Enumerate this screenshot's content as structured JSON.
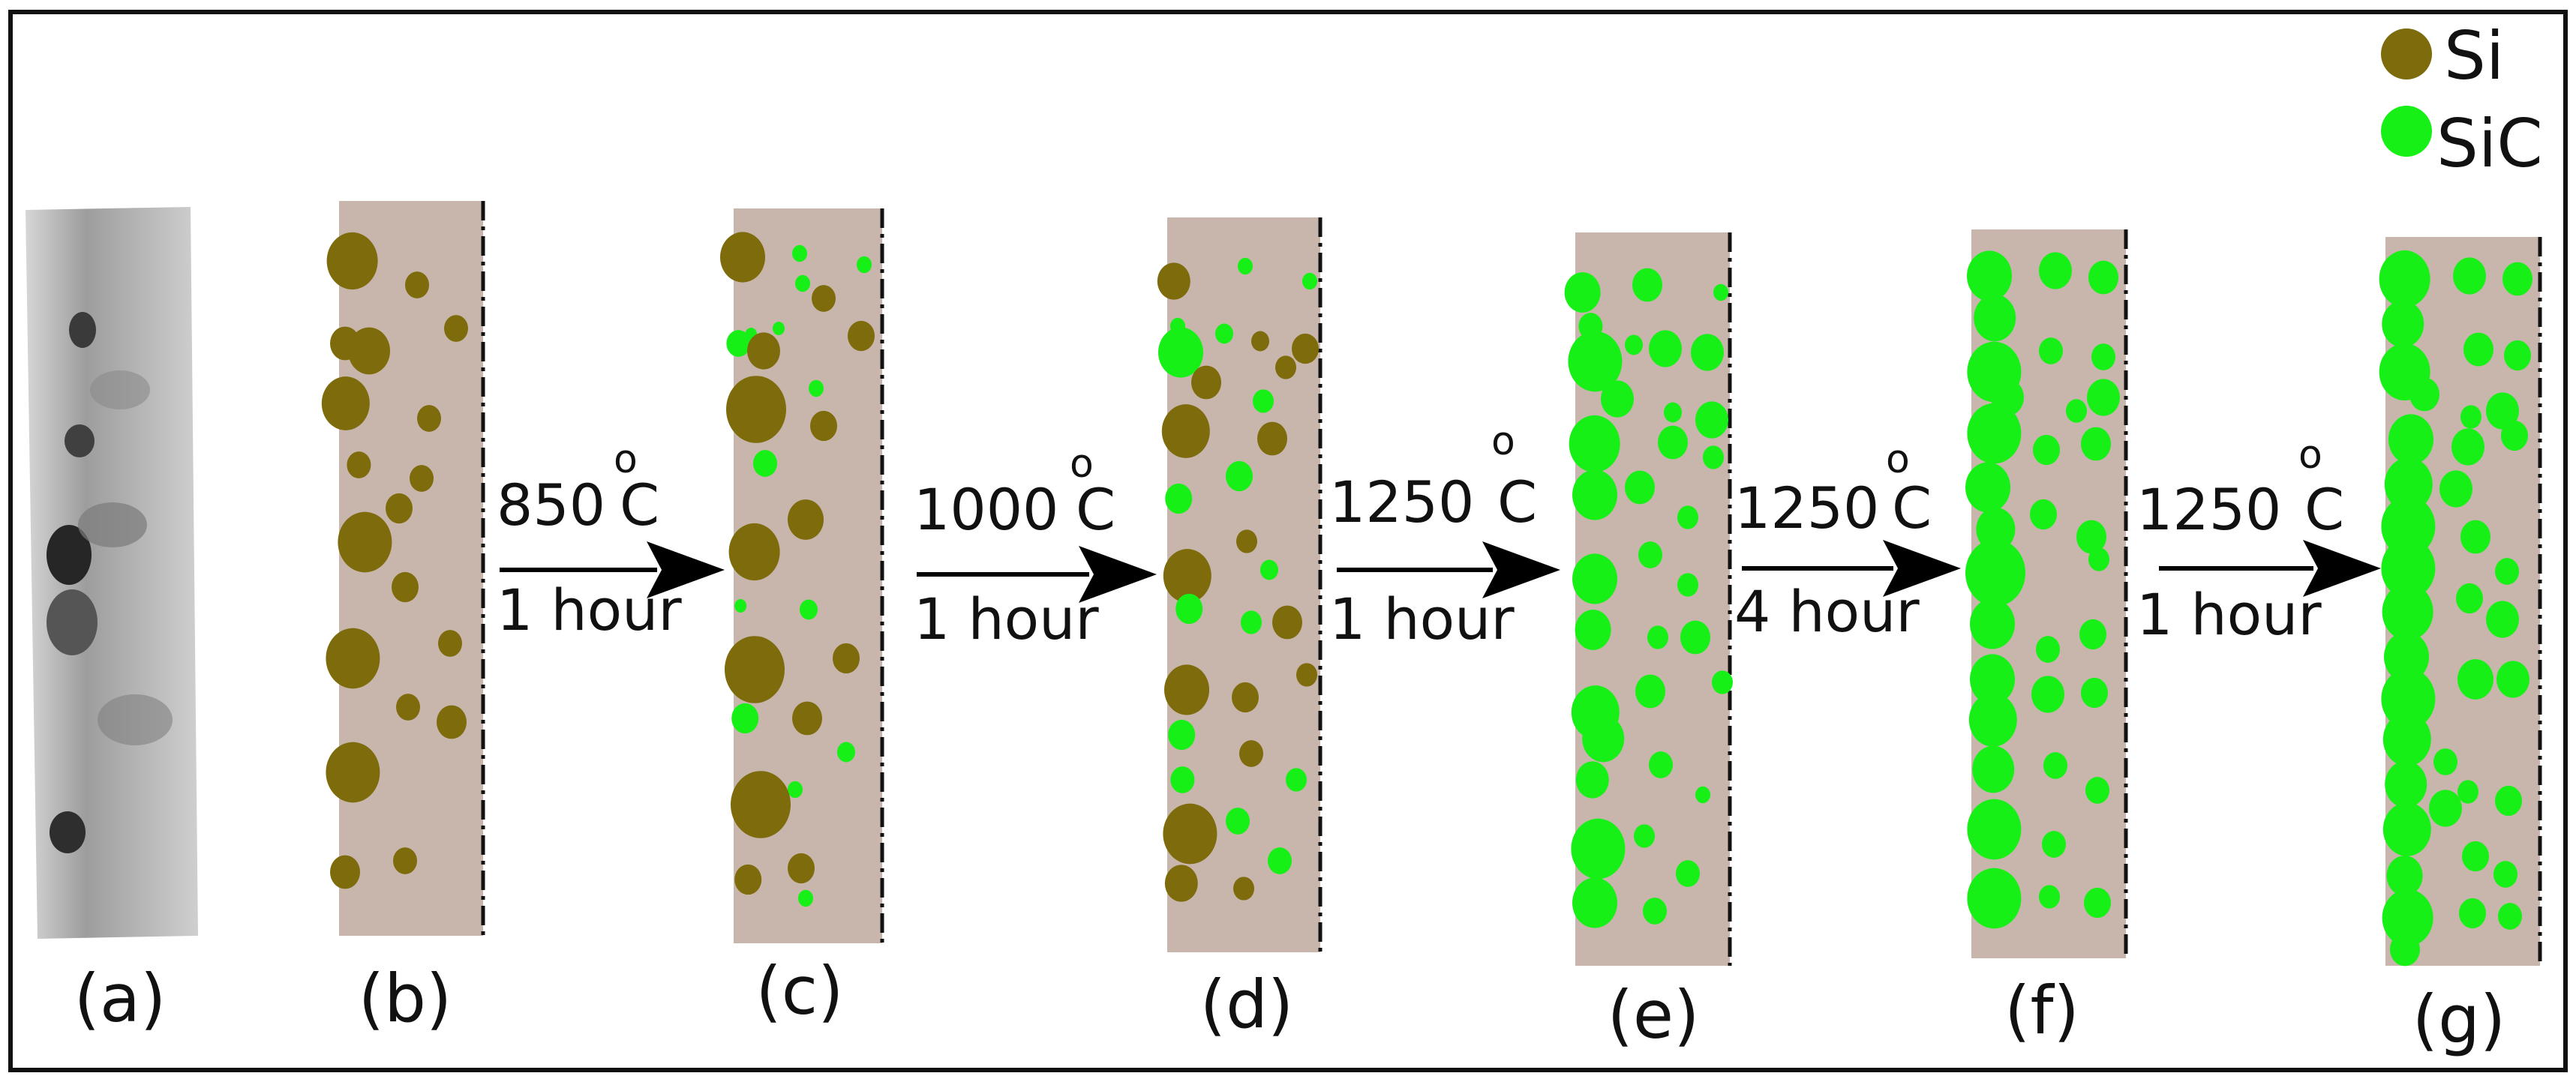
{
  "colors": {
    "si": "#7d6b0c",
    "sic": "#17f017",
    "matrix": "#c8b6ad",
    "border": "#111111",
    "arrow": "#000000",
    "text": "#111111"
  },
  "legend": {
    "items": [
      {
        "key": "si",
        "label": "Si"
      },
      {
        "key": "sic",
        "label": "SiC"
      }
    ]
  },
  "panel_labels": [
    "(a)",
    "(b)",
    "(c)",
    "(d)",
    "(e)",
    "(f)",
    "(g)"
  ],
  "transitions": [
    {
      "temp": "850",
      "degree": "o",
      "unit": "C",
      "time": "1 hour"
    },
    {
      "temp": "1000",
      "degree": "o",
      "unit": "C",
      "time": "1 hour"
    },
    {
      "temp": "1250",
      "degree": "o",
      "unit": "C",
      "time": "1 hour"
    },
    {
      "temp": "1250",
      "degree": "o",
      "unit": "C",
      "time": "4 hour"
    },
    {
      "temp": "1250",
      "degree": "o",
      "unit": "C",
      "time": "1 hour"
    }
  ]
}
